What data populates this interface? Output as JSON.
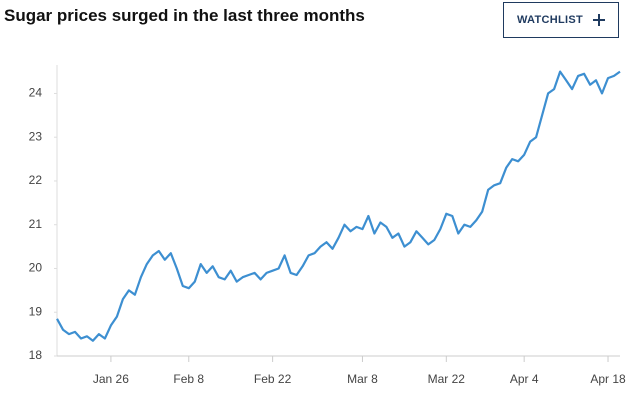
{
  "header": {
    "title": "Sugar prices surged in the last three months",
    "button": "WATCHLIST"
  },
  "chart_data": {
    "type": "line",
    "x": [
      "Jan 17",
      "Jan 18",
      "Jan 19",
      "Jan 20",
      "Jan 21",
      "Jan 22",
      "Jan 23",
      "Jan 24",
      "Jan 25",
      "Jan 26",
      "Jan 27",
      "Jan 28",
      "Jan 29",
      "Jan 30",
      "Jan 31",
      "Feb 1",
      "Feb 2",
      "Feb 3",
      "Feb 4",
      "Feb 5",
      "Feb 6",
      "Feb 7",
      "Feb 8",
      "Feb 9",
      "Feb 10",
      "Feb 11",
      "Feb 12",
      "Feb 13",
      "Feb 14",
      "Feb 15",
      "Feb 16",
      "Feb 17",
      "Feb 18",
      "Feb 19",
      "Feb 20",
      "Feb 21",
      "Feb 22",
      "Feb 23",
      "Feb 24",
      "Feb 25",
      "Feb 26",
      "Feb 27",
      "Feb 28",
      "Feb 29",
      "Mar 1",
      "Mar 2",
      "Mar 3",
      "Mar 4",
      "Mar 5",
      "Mar 6",
      "Mar 7",
      "Mar 8",
      "Mar 9",
      "Mar 10",
      "Mar 11",
      "Mar 12",
      "Mar 13",
      "Mar 14",
      "Mar 15",
      "Mar 16",
      "Mar 17",
      "Mar 18",
      "Mar 19",
      "Mar 20",
      "Mar 21",
      "Mar 22",
      "Mar 23",
      "Mar 24",
      "Mar 25",
      "Mar 26",
      "Mar 27",
      "Mar 28",
      "Mar 29",
      "Mar 30",
      "Mar 31",
      "Apr 1",
      "Apr 2",
      "Apr 3",
      "Apr 4",
      "Apr 5",
      "Apr 6",
      "Apr 7",
      "Apr 8",
      "Apr 9",
      "Apr 10",
      "Apr 11",
      "Apr 12",
      "Apr 13",
      "Apr 14",
      "Apr 15",
      "Apr 16",
      "Apr 17",
      "Apr 18",
      "Apr 19",
      "Apr 20"
    ],
    "values": [
      18.85,
      18.6,
      18.5,
      18.55,
      18.4,
      18.45,
      18.35,
      18.5,
      18.4,
      18.7,
      18.9,
      19.3,
      19.5,
      19.4,
      19.8,
      20.1,
      20.3,
      20.4,
      20.2,
      20.35,
      20.0,
      19.6,
      19.55,
      19.7,
      20.1,
      19.9,
      20.05,
      19.8,
      19.75,
      19.95,
      19.7,
      19.8,
      19.85,
      19.9,
      19.75,
      19.9,
      19.95,
      20.0,
      20.3,
      19.9,
      19.85,
      20.05,
      20.3,
      20.35,
      20.5,
      20.6,
      20.45,
      20.7,
      21.0,
      20.85,
      20.95,
      20.9,
      21.2,
      20.8,
      21.05,
      20.95,
      20.7,
      20.8,
      20.5,
      20.6,
      20.85,
      20.7,
      20.55,
      20.65,
      20.9,
      21.25,
      21.2,
      20.8,
      21.0,
      20.95,
      21.1,
      21.3,
      21.8,
      21.9,
      21.95,
      22.3,
      22.5,
      22.45,
      22.6,
      22.9,
      23.0,
      23.5,
      24.0,
      24.1,
      24.5,
      24.3,
      24.1,
      24.4,
      24.45,
      24.2,
      24.3,
      24.0,
      24.35,
      24.4,
      24.5
    ],
    "color": "#3d8fd1",
    "xticks": [
      "Jan 26",
      "Feb 8",
      "Feb 22",
      "Mar 8",
      "Mar 22",
      "Apr 4",
      "Apr 18"
    ],
    "ylim": [
      18,
      24.65
    ],
    "yticks": [
      18,
      19,
      20,
      21,
      22,
      23,
      24
    ]
  }
}
